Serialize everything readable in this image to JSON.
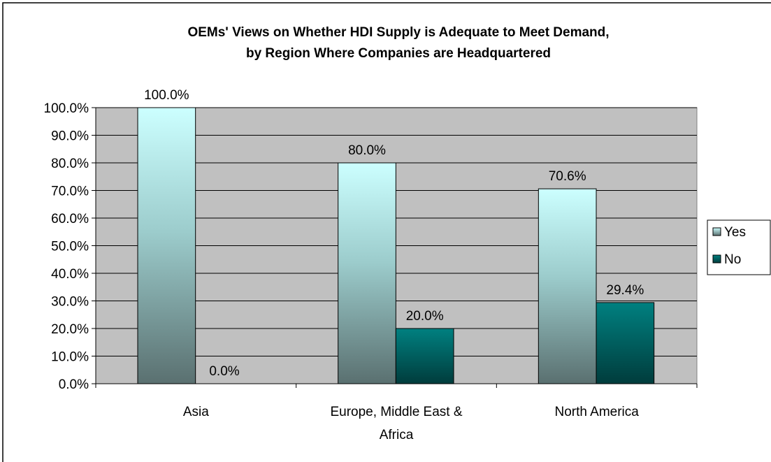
{
  "chart_data": {
    "type": "bar",
    "title": "OEMs' Views on Whether HDI Supply is Adequate to Meet Demand,",
    "subtitle": "by Region Where Companies are Headquartered",
    "categories": [
      "Asia",
      "Europe, Middle East & Africa",
      "North America"
    ],
    "category_label_lines": [
      [
        "Asia"
      ],
      [
        "Europe, Middle East &",
        "Africa"
      ],
      [
        "North America"
      ]
    ],
    "series": [
      {
        "name": "Yes",
        "values": [
          100.0,
          80.0,
          70.6
        ],
        "labels": [
          "100.0%",
          "80.0%",
          "70.6%"
        ],
        "color": "#ccffff"
      },
      {
        "name": "No",
        "values": [
          0.0,
          20.0,
          29.4
        ],
        "labels": [
          "0.0%",
          "20.0%",
          "29.4%"
        ],
        "color": "#008080"
      }
    ],
    "ylim": [
      0,
      100
    ],
    "yticks": [
      "0.0%",
      "10.0%",
      "20.0%",
      "30.0%",
      "40.0%",
      "50.0%",
      "60.0%",
      "70.0%",
      "80.0%",
      "90.0%",
      "100.0%"
    ],
    "grid": true,
    "legend_position": "right",
    "plot_background": "#c0c0c0"
  }
}
